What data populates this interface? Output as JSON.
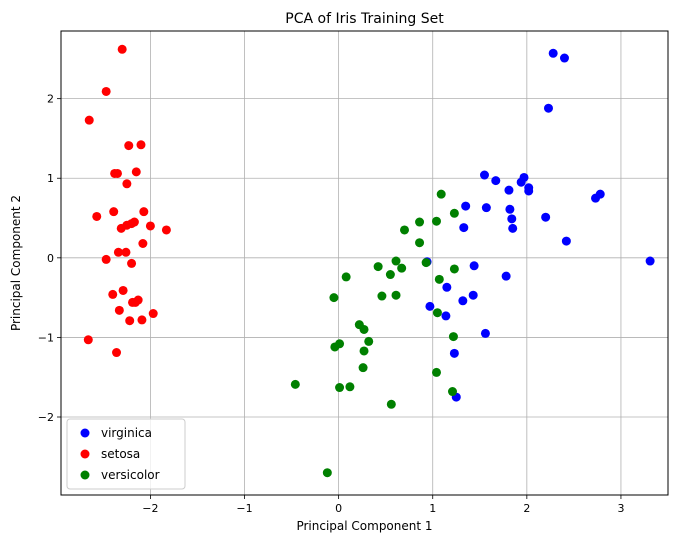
{
  "chart_data": {
    "type": "scatter",
    "title": "PCA of Iris Training Set",
    "xlabel": "Principal Component 1",
    "ylabel": "Principal Component 2",
    "xlim": [
      -2.95,
      3.5
    ],
    "ylim": [
      -2.98,
      2.85
    ],
    "xticks": [
      -2,
      -1,
      0,
      1,
      2,
      3
    ],
    "yticks": [
      -2,
      -1,
      0,
      1,
      2
    ],
    "grid": true,
    "legend_position": "lower-left",
    "series": [
      {
        "name": "virginica",
        "color": "#0000ff",
        "points": [
          [
            2.28,
            2.57
          ],
          [
            2.4,
            2.51
          ],
          [
            2.23,
            1.88
          ],
          [
            1.55,
            1.04
          ],
          [
            1.67,
            0.97
          ],
          [
            1.94,
            0.95
          ],
          [
            1.97,
            1.01
          ],
          [
            2.02,
            0.88
          ],
          [
            2.02,
            0.84
          ],
          [
            1.81,
            0.85
          ],
          [
            1.35,
            0.65
          ],
          [
            1.57,
            0.63
          ],
          [
            1.82,
            0.61
          ],
          [
            1.84,
            0.49
          ],
          [
            2.2,
            0.51
          ],
          [
            2.73,
            0.75
          ],
          [
            2.78,
            0.8
          ],
          [
            1.33,
            0.38
          ],
          [
            1.85,
            0.37
          ],
          [
            2.42,
            0.21
          ],
          [
            3.31,
            -0.04
          ],
          [
            1.44,
            -0.1
          ],
          [
            1.78,
            -0.23
          ],
          [
            0.94,
            -0.05
          ],
          [
            1.15,
            -0.37
          ],
          [
            1.43,
            -0.47
          ],
          [
            1.32,
            -0.54
          ],
          [
            0.97,
            -0.61
          ],
          [
            1.14,
            -0.73
          ],
          [
            1.56,
            -0.95
          ],
          [
            1.23,
            -1.2
          ],
          [
            1.25,
            -1.75
          ]
        ]
      },
      {
        "name": "setosa",
        "color": "#ff0000",
        "points": [
          [
            -2.3,
            2.62
          ],
          [
            -2.47,
            2.09
          ],
          [
            -2.65,
            1.73
          ],
          [
            -2.1,
            1.42
          ],
          [
            -2.23,
            1.41
          ],
          [
            -2.38,
            1.06
          ],
          [
            -2.35,
            1.06
          ],
          [
            -2.15,
            1.08
          ],
          [
            -2.25,
            0.93
          ],
          [
            -2.39,
            0.58
          ],
          [
            -2.57,
            0.52
          ],
          [
            -2.07,
            0.58
          ],
          [
            -2.25,
            0.41
          ],
          [
            -2.31,
            0.37
          ],
          [
            -2.2,
            0.43
          ],
          [
            -2.17,
            0.45
          ],
          [
            -2.0,
            0.4
          ],
          [
            -1.83,
            0.35
          ],
          [
            -2.08,
            0.18
          ],
          [
            -2.34,
            0.07
          ],
          [
            -2.26,
            0.07
          ],
          [
            -2.2,
            -0.07
          ],
          [
            -2.47,
            -0.02
          ],
          [
            -2.4,
            -0.46
          ],
          [
            -2.29,
            -0.41
          ],
          [
            -2.13,
            -0.53
          ],
          [
            -2.19,
            -0.56
          ],
          [
            -2.16,
            -0.56
          ],
          [
            -2.33,
            -0.66
          ],
          [
            -1.97,
            -0.7
          ],
          [
            -2.09,
            -0.78
          ],
          [
            -2.22,
            -0.79
          ],
          [
            -2.66,
            -1.03
          ],
          [
            -2.36,
            -1.19
          ]
        ]
      },
      {
        "name": "versicolor",
        "color": "#008000",
        "points": [
          [
            1.09,
            0.8
          ],
          [
            1.23,
            0.56
          ],
          [
            1.04,
            0.46
          ],
          [
            0.86,
            0.45
          ],
          [
            0.7,
            0.35
          ],
          [
            0.86,
            0.19
          ],
          [
            0.42,
            -0.11
          ],
          [
            0.55,
            -0.21
          ],
          [
            0.61,
            -0.04
          ],
          [
            0.67,
            -0.13
          ],
          [
            0.93,
            -0.06
          ],
          [
            1.23,
            -0.14
          ],
          [
            1.07,
            -0.27
          ],
          [
            0.08,
            -0.24
          ],
          [
            -0.05,
            -0.5
          ],
          [
            0.46,
            -0.48
          ],
          [
            0.61,
            -0.47
          ],
          [
            1.05,
            -0.69
          ],
          [
            0.22,
            -0.84
          ],
          [
            0.27,
            -0.9
          ],
          [
            0.32,
            -1.05
          ],
          [
            0.01,
            -1.08
          ],
          [
            -0.04,
            -1.12
          ],
          [
            1.22,
            -0.99
          ],
          [
            0.27,
            -1.17
          ],
          [
            0.26,
            -1.38
          ],
          [
            1.04,
            -1.44
          ],
          [
            -0.46,
            -1.59
          ],
          [
            0.01,
            -1.63
          ],
          [
            0.12,
            -1.62
          ],
          [
            1.21,
            -1.68
          ],
          [
            0.56,
            -1.84
          ],
          [
            -0.12,
            -2.7
          ]
        ]
      }
    ]
  }
}
